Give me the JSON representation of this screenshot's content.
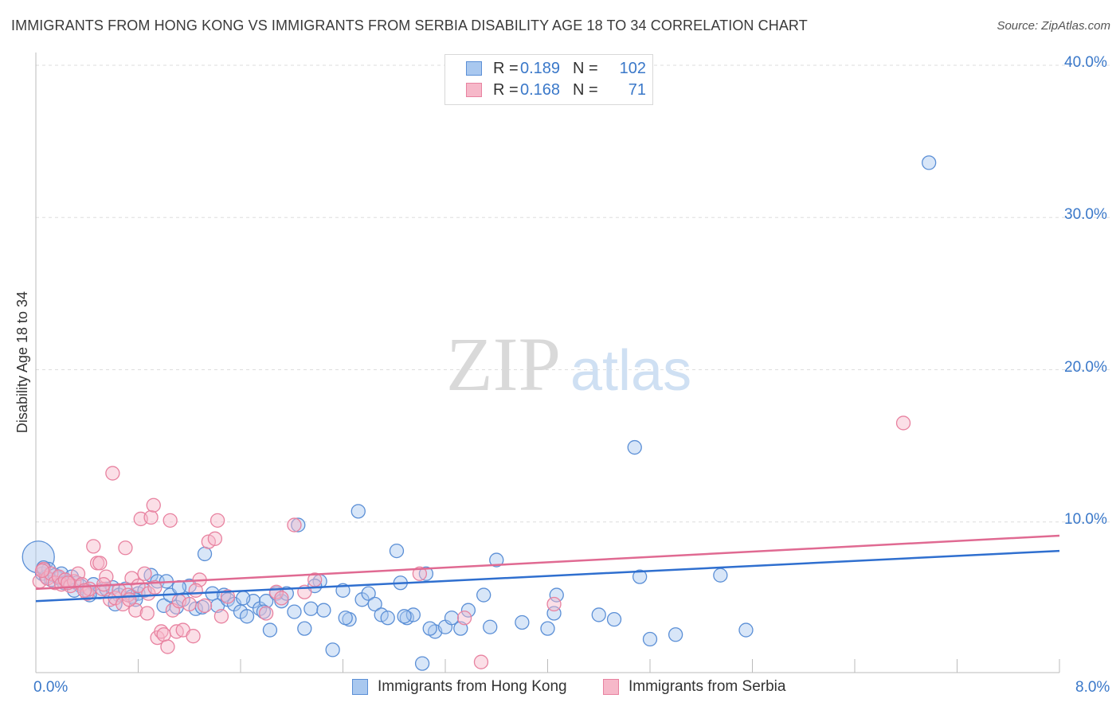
{
  "header": {
    "title": "IMMIGRANTS FROM HONG KONG VS IMMIGRANTS FROM SERBIA DISABILITY AGE 18 TO 34 CORRELATION CHART",
    "source": "Source: ZipAtlas.com"
  },
  "watermark": {
    "zip": "ZIP",
    "atlas": "atlas"
  },
  "legend": {
    "rows": [
      {
        "r_label": "R =",
        "r_value": "0.189",
        "n_label": "N =",
        "n_value": "102"
      },
      {
        "r_label": "R =",
        "r_value": "0.168",
        "n_label": "N =",
        "n_value": "71"
      }
    ]
  },
  "colors": {
    "hong_kong_fill": "#a9c8ef",
    "hong_kong_stroke": "#5b8fd6",
    "hong_kong_line": "#2f6fcf",
    "serbia_fill": "#f6b8c9",
    "serbia_stroke": "#e882a0",
    "serbia_line": "#e06a92",
    "tick_text": "#3a78c9"
  },
  "chart_data": {
    "type": "scatter",
    "title": "IMMIGRANTS FROM HONG KONG VS IMMIGRANTS FROM SERBIA DISABILITY AGE 18 TO 34 CORRELATION CHART",
    "xlabel": "",
    "ylabel": "Disability Age 18 to 34",
    "xlim": [
      0,
      8
    ],
    "ylim": [
      0,
      40
    ],
    "x_tick_labels": [
      "0.0%",
      "8.0%"
    ],
    "y_tick_labels": [
      "10.0%",
      "20.0%",
      "30.0%",
      "40.0%"
    ],
    "y_ticks": [
      10,
      20,
      30,
      40
    ],
    "grid": true,
    "legend_position": "top-center",
    "series": [
      {
        "name": "Immigrants from Hong Kong",
        "r": 0.189,
        "n": 102,
        "trend": [
          [
            0,
            4.8
          ],
          [
            8,
            8.1
          ]
        ],
        "points": [
          [
            0.02,
            7.7
          ],
          [
            0.05,
            6.6
          ],
          [
            0.08,
            6.4
          ],
          [
            0.1,
            6.9
          ],
          [
            0.12,
            6.2
          ],
          [
            0.15,
            6.5
          ],
          [
            0.18,
            6.3
          ],
          [
            0.2,
            6.6
          ],
          [
            0.25,
            6.1
          ],
          [
            0.28,
            6.4
          ],
          [
            0.32,
            6.0
          ],
          [
            0.35,
            5.8
          ],
          [
            0.4,
            5.5
          ],
          [
            0.45,
            5.9
          ],
          [
            0.5,
            5.4
          ],
          [
            0.55,
            5.6
          ],
          [
            0.6,
            5.7
          ],
          [
            0.65,
            5.2
          ],
          [
            0.7,
            5.6
          ],
          [
            0.75,
            5.1
          ],
          [
            0.8,
            5.3
          ],
          [
            0.85,
            5.5
          ],
          [
            0.9,
            6.5
          ],
          [
            0.95,
            6.1
          ],
          [
            1.0,
            4.5
          ],
          [
            1.05,
            5.2
          ],
          [
            1.1,
            4.4
          ],
          [
            1.15,
            4.9
          ],
          [
            1.2,
            5.8
          ],
          [
            1.25,
            4.3
          ],
          [
            1.3,
            4.4
          ],
          [
            1.32,
            7.9
          ],
          [
            1.38,
            5.3
          ],
          [
            1.42,
            4.5
          ],
          [
            1.47,
            5.2
          ],
          [
            1.5,
            4.9
          ],
          [
            1.55,
            4.6
          ],
          [
            1.6,
            4.1
          ],
          [
            1.65,
            3.8
          ],
          [
            1.7,
            4.8
          ],
          [
            1.75,
            4.3
          ],
          [
            1.8,
            4.8
          ],
          [
            1.83,
            2.9
          ],
          [
            1.88,
            5.3
          ],
          [
            1.92,
            4.8
          ],
          [
            1.96,
            5.3
          ],
          [
            2.02,
            4.1
          ],
          [
            2.05,
            9.8
          ],
          [
            2.1,
            3.0
          ],
          [
            2.15,
            4.3
          ],
          [
            2.22,
            6.1
          ],
          [
            2.25,
            4.2
          ],
          [
            2.32,
            1.6
          ],
          [
            2.4,
            5.5
          ],
          [
            2.45,
            3.6
          ],
          [
            2.52,
            10.7
          ],
          [
            2.55,
            4.9
          ],
          [
            2.6,
            5.3
          ],
          [
            2.65,
            4.6
          ],
          [
            2.7,
            3.9
          ],
          [
            2.75,
            3.7
          ],
          [
            2.82,
            8.1
          ],
          [
            2.85,
            6.0
          ],
          [
            2.9,
            3.7
          ],
          [
            2.95,
            3.9
          ],
          [
            3.02,
            0.7
          ],
          [
            3.05,
            6.6
          ],
          [
            3.12,
            2.8
          ],
          [
            3.2,
            3.1
          ],
          [
            3.25,
            3.7
          ],
          [
            3.32,
            3.0
          ],
          [
            3.38,
            4.2
          ],
          [
            3.5,
            5.2
          ],
          [
            3.55,
            3.1
          ],
          [
            3.6,
            7.5
          ],
          [
            3.8,
            3.4
          ],
          [
            4.0,
            3.0
          ],
          [
            4.05,
            4.0
          ],
          [
            4.07,
            5.2
          ],
          [
            4.4,
            3.9
          ],
          [
            4.52,
            3.6
          ],
          [
            4.68,
            14.9
          ],
          [
            4.72,
            6.4
          ],
          [
            4.8,
            2.3
          ],
          [
            5.0,
            2.6
          ],
          [
            5.35,
            6.5
          ],
          [
            5.55,
            2.9
          ],
          [
            6.98,
            33.6
          ],
          [
            0.3,
            5.5
          ],
          [
            0.62,
            4.6
          ],
          [
            0.78,
            4.9
          ],
          [
            1.02,
            6.1
          ],
          [
            1.62,
            5.0
          ],
          [
            2.42,
            3.7
          ],
          [
            2.88,
            3.8
          ],
          [
            3.08,
            3.0
          ],
          [
            1.78,
            4.1
          ],
          [
            0.42,
            5.2
          ],
          [
            0.22,
            6.0
          ],
          [
            0.06,
            7.0
          ],
          [
            1.12,
            5.7
          ],
          [
            2.18,
            5.8
          ]
        ]
      },
      {
        "name": "Immigrants from Serbia",
        "r": 0.168,
        "n": 71,
        "trend": [
          [
            0,
            5.6
          ],
          [
            8,
            9.1
          ]
        ],
        "points": [
          [
            0.03,
            6.1
          ],
          [
            0.06,
            6.9
          ],
          [
            0.09,
            6.3
          ],
          [
            0.12,
            6.6
          ],
          [
            0.15,
            6.0
          ],
          [
            0.18,
            6.4
          ],
          [
            0.2,
            5.9
          ],
          [
            0.23,
            6.2
          ],
          [
            0.27,
            5.8
          ],
          [
            0.3,
            6.1
          ],
          [
            0.33,
            6.6
          ],
          [
            0.36,
            5.9
          ],
          [
            0.4,
            5.3
          ],
          [
            0.42,
            5.6
          ],
          [
            0.45,
            8.4
          ],
          [
            0.48,
            7.3
          ],
          [
            0.5,
            7.3
          ],
          [
            0.52,
            5.6
          ],
          [
            0.55,
            6.4
          ],
          [
            0.58,
            4.9
          ],
          [
            0.6,
            13.2
          ],
          [
            0.62,
            5.0
          ],
          [
            0.65,
            5.5
          ],
          [
            0.68,
            4.6
          ],
          [
            0.7,
            8.3
          ],
          [
            0.72,
            5.2
          ],
          [
            0.75,
            6.3
          ],
          [
            0.78,
            4.2
          ],
          [
            0.8,
            5.8
          ],
          [
            0.82,
            10.2
          ],
          [
            0.85,
            6.6
          ],
          [
            0.87,
            4.0
          ],
          [
            0.88,
            5.3
          ],
          [
            0.9,
            10.3
          ],
          [
            0.92,
            11.1
          ],
          [
            0.95,
            2.4
          ],
          [
            0.98,
            2.8
          ],
          [
            1.0,
            2.6
          ],
          [
            1.03,
            1.8
          ],
          [
            1.05,
            10.1
          ],
          [
            1.07,
            4.2
          ],
          [
            1.1,
            2.8
          ],
          [
            1.12,
            4.8
          ],
          [
            1.15,
            2.9
          ],
          [
            1.2,
            4.6
          ],
          [
            1.23,
            2.5
          ],
          [
            1.28,
            6.2
          ],
          [
            1.32,
            4.5
          ],
          [
            1.35,
            8.7
          ],
          [
            1.4,
            8.9
          ],
          [
            1.42,
            10.1
          ],
          [
            1.45,
            3.8
          ],
          [
            1.5,
            5.1
          ],
          [
            1.8,
            4.0
          ],
          [
            1.88,
            5.4
          ],
          [
            1.92,
            5.0
          ],
          [
            2.02,
            9.8
          ],
          [
            2.1,
            5.4
          ],
          [
            2.18,
            6.2
          ],
          [
            3.0,
            6.6
          ],
          [
            3.35,
            3.7
          ],
          [
            3.48,
            0.8
          ],
          [
            4.05,
            4.6
          ],
          [
            6.78,
            16.5
          ],
          [
            0.05,
            6.8
          ],
          [
            0.25,
            6.0
          ],
          [
            0.38,
            5.5
          ],
          [
            0.53,
            5.9
          ],
          [
            0.73,
            4.9
          ],
          [
            0.93,
            5.7
          ],
          [
            1.25,
            5.5
          ]
        ]
      }
    ]
  },
  "bottom_legend": {
    "items": [
      "Immigrants from Hong Kong",
      "Immigrants from Serbia"
    ]
  }
}
